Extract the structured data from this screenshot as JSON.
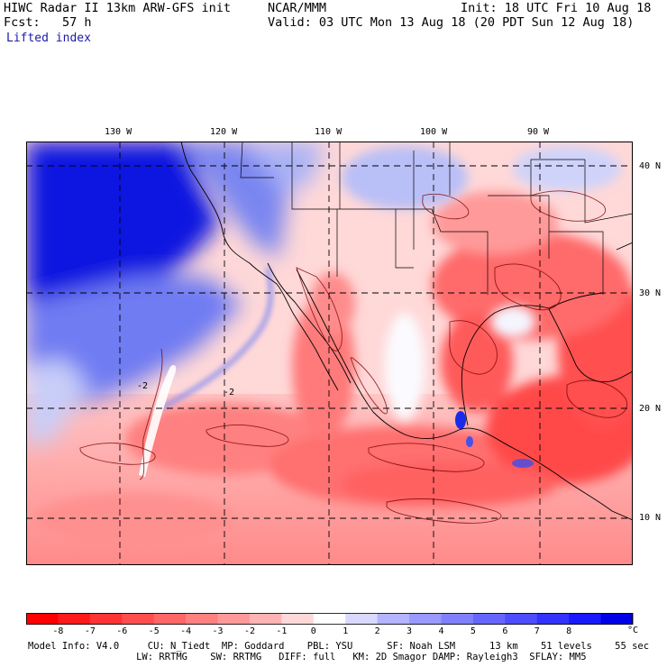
{
  "header": {
    "line1_left": "HIWC Radar II 13km ARW-GFS init",
    "line1_mid": "NCAR/MMM",
    "line1_right": "Init: 18 UTC Fri 10 Aug 18",
    "line2_left": "Fcst:   57 h",
    "line2_right": "Valid: 03 UTC Mon 13 Aug 18 (20 PDT Sun 12 Aug 18)",
    "field": "Lifted index"
  },
  "map": {
    "lon_labels": [
      "130 W",
      "120 W",
      "110 W",
      "100 W",
      "90 W"
    ],
    "lat_labels": [
      "40 N",
      "30 N",
      "20 N",
      "10 N"
    ],
    "contour_labels": [
      "-2",
      "-2"
    ]
  },
  "colorbar": {
    "tick_labels": [
      "-8",
      "-7",
      "-6",
      "-5",
      "-4",
      "-3",
      "-2",
      "-1",
      "0",
      "1",
      "2",
      "3",
      "4",
      "5",
      "6",
      "7",
      "8"
    ],
    "unit": "°C",
    "colors": [
      "#ff0000",
      "#ff1a1a",
      "#ff3333",
      "#ff4d4d",
      "#ff6666",
      "#ff8080",
      "#ff9999",
      "#ffb3b3",
      "#ffd9d9",
      "#ffffff",
      "#d9d9ff",
      "#b3b3ff",
      "#9999ff",
      "#8080ff",
      "#6666ff",
      "#4d4dff",
      "#3333ff",
      "#1a1aff",
      "#0000e6"
    ]
  },
  "footer": {
    "line1": "Model Info: V4.0     CU: N_Tiedt  MP: Goddard    PBL: YSU      SF: Noah LSM      13 km    51 levels    55 sec",
    "line2": "                   LW: RRTMG    SW: RRTMG   DIFF: full   KM: 2D Smagor DAMP: Rayleigh3  SFLAY: MM5"
  }
}
